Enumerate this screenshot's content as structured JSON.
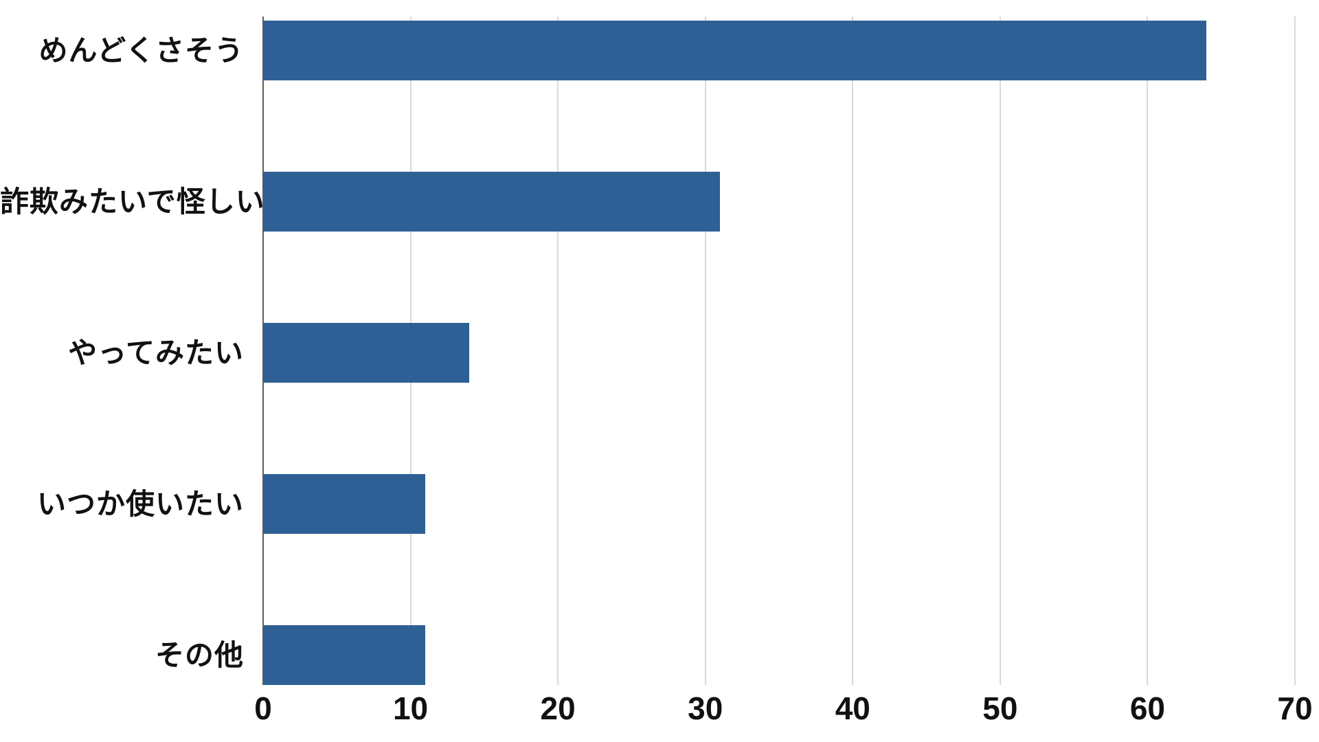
{
  "chart_data": {
    "type": "bar",
    "orientation": "horizontal",
    "title": "",
    "xlabel": "",
    "ylabel": "",
    "categories": [
      "めんどくさそう",
      "詐欺みたいで怪しい",
      "やってみたい",
      "いつか使いたい",
      "その他"
    ],
    "values": [
      64,
      31,
      14,
      11,
      11
    ],
    "x_ticks": [
      "0",
      "10",
      "20",
      "30",
      "40",
      "50",
      "60",
      "70"
    ],
    "x_tick_values": [
      0,
      10,
      20,
      30,
      40,
      50,
      60,
      70
    ],
    "xlim": [
      0,
      70
    ],
    "grid": true,
    "legend": false,
    "colors": {
      "bar": "#2e6095",
      "gridline": "#d9d9d9",
      "zero_axis_line": "#5f5f5f",
      "text": "#111111",
      "background": "#ffffff"
    }
  }
}
